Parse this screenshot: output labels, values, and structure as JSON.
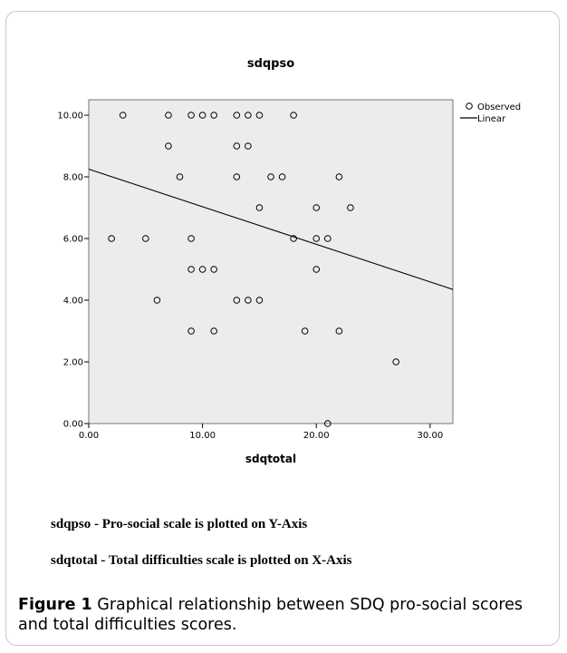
{
  "chart_data": {
    "type": "scatter",
    "title": "sdqpso",
    "xlabel": "sdqtotal",
    "ylabel": "",
    "xlim": [
      0,
      32
    ],
    "ylim": [
      0,
      10.5
    ],
    "x_ticks": [
      "0.00",
      "10.00",
      "20.00",
      "30.00"
    ],
    "y_ticks": [
      "0.00",
      "2.00",
      "4.00",
      "6.00",
      "8.00",
      "10.00"
    ],
    "grid": false,
    "legend_position": "top-right",
    "series": [
      {
        "name": "Observed",
        "marker": "open-circle",
        "points": [
          [
            3,
            10
          ],
          [
            7,
            10
          ],
          [
            9,
            10
          ],
          [
            10,
            10
          ],
          [
            11,
            10
          ],
          [
            13,
            10
          ],
          [
            14,
            10
          ],
          [
            15,
            10
          ],
          [
            18,
            10
          ],
          [
            7,
            9
          ],
          [
            13,
            9
          ],
          [
            14,
            9
          ],
          [
            8,
            8
          ],
          [
            13,
            8
          ],
          [
            16,
            8
          ],
          [
            17,
            8
          ],
          [
            22,
            8
          ],
          [
            15,
            7
          ],
          [
            20,
            7
          ],
          [
            23,
            7
          ],
          [
            2,
            6
          ],
          [
            5,
            6
          ],
          [
            9,
            6
          ],
          [
            18,
            6
          ],
          [
            20,
            6
          ],
          [
            21,
            6
          ],
          [
            9,
            5
          ],
          [
            10,
            5
          ],
          [
            11,
            5
          ],
          [
            20,
            5
          ],
          [
            6,
            4
          ],
          [
            13,
            4
          ],
          [
            14,
            4
          ],
          [
            15,
            4
          ],
          [
            9,
            3
          ],
          [
            11,
            3
          ],
          [
            19,
            3
          ],
          [
            22,
            3
          ],
          [
            27,
            2
          ],
          [
            21,
            0
          ]
        ]
      },
      {
        "name": "Linear",
        "type": "line",
        "points": [
          [
            0,
            8.25
          ],
          [
            32,
            4.35
          ]
        ]
      }
    ]
  },
  "notes": [
    "sdqpso - Pro-social scale is plotted on Y-Axis",
    "sdqtotal - Total difficulties scale is plotted on X-Axis"
  ],
  "caption": {
    "label": "Figure 1",
    "text": " Graphical relationship between SDQ pro-social scores and total difficulties scores",
    "end": "."
  },
  "colors": {
    "plot_background": "#ececec",
    "marker": "#000000",
    "line": "#000000",
    "border": "#c8c8c8"
  }
}
